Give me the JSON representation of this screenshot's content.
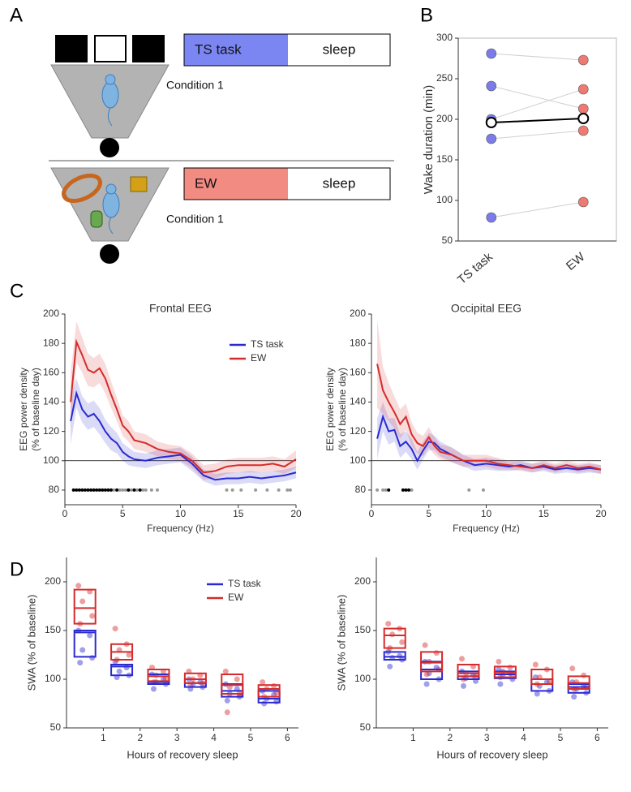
{
  "panel_labels": [
    "A",
    "B",
    "C",
    "D"
  ],
  "diagram": {
    "rows": [
      {
        "task": "TS task",
        "sleep": "sleep",
        "condition": "Condition 1"
      },
      {
        "task": "EW",
        "sleep": "sleep",
        "condition": "Condition 1"
      }
    ]
  },
  "chart_data": [
    {
      "type": "paired",
      "ylabel": "Wake duration (min)",
      "categories": [
        "TS task",
        "EW"
      ],
      "colors": [
        "#7b7bea",
        "#ee7a72"
      ],
      "ylim": [
        50,
        300
      ],
      "yticks": [
        50,
        100,
        150,
        200,
        250,
        300
      ],
      "subjects": [
        [
          281,
          273
        ],
        [
          241,
          213
        ],
        [
          200,
          237
        ],
        [
          176,
          186
        ],
        [
          79,
          98
        ]
      ],
      "mean": [
        196,
        201
      ]
    },
    {
      "type": "line",
      "title": "Frontal EEG",
      "xlabel": "Frequency (Hz)",
      "ylabel": [
        "EEG power density",
        "(% of baseline day)"
      ],
      "x": [
        0.5,
        1,
        1.5,
        2,
        2.5,
        3,
        3.5,
        4,
        4.5,
        5,
        5.5,
        6,
        7,
        8,
        9,
        10,
        11,
        12,
        13,
        14,
        15,
        16,
        17,
        18,
        19,
        20
      ],
      "xlim": [
        0,
        20
      ],
      "xticks": [
        0,
        5,
        10,
        15,
        20
      ],
      "ylim": [
        70,
        200
      ],
      "yticks": [
        80,
        100,
        120,
        140,
        160,
        180,
        200
      ],
      "reference_line": 100,
      "legend": "upper right",
      "series": [
        {
          "name": "TS task",
          "color": "#2a2ad0",
          "values": [
            127,
            146,
            135,
            130,
            132,
            127,
            120,
            115,
            112,
            106,
            103,
            101,
            100,
            102,
            103,
            104,
            98,
            90,
            87,
            88,
            88,
            89,
            88,
            89,
            90,
            92
          ],
          "errors": [
            16,
            10,
            9,
            9,
            9,
            9,
            8,
            8,
            7,
            6,
            6,
            5,
            5,
            5,
            5,
            5,
            5,
            4,
            4,
            4,
            4,
            4,
            4,
            4,
            4,
            4
          ]
        },
        {
          "name": "EW",
          "color": "#d62b2b",
          "values": [
            140,
            181,
            172,
            162,
            160,
            163,
            156,
            145,
            135,
            124,
            120,
            114,
            112,
            108,
            106,
            105,
            100,
            92,
            93,
            96,
            97,
            97,
            97,
            98,
            96,
            101
          ],
          "errors": [
            20,
            14,
            12,
            11,
            10,
            10,
            10,
            9,
            8,
            7,
            7,
            6,
            6,
            5,
            5,
            5,
            5,
            5,
            5,
            5,
            5,
            5,
            5,
            5,
            5,
            6
          ]
        }
      ],
      "significance": {
        "y": 80,
        "black": [
          0.75,
          1,
          1.25,
          1.5,
          1.75,
          2,
          2.25,
          2.5,
          2.75,
          3,
          3.25,
          3.5,
          3.75,
          4,
          4.5,
          5.5,
          6,
          6.5
        ],
        "grey": [
          4.25,
          4.75,
          5,
          5.25,
          5.75,
          6.25,
          6.75,
          7,
          7.5,
          8,
          14,
          14.5,
          15.25,
          16.5,
          17.5,
          18.5,
          19.25,
          19.5
        ]
      }
    },
    {
      "type": "line",
      "title": "Occipital EEG",
      "xlabel": "Frequency (Hz)",
      "ylabel": [
        "EEG power density",
        "(% of baseline day)"
      ],
      "x": [
        0.5,
        1,
        1.5,
        2,
        2.5,
        3,
        3.5,
        4,
        4.5,
        5,
        5.5,
        6,
        7,
        8,
        9,
        10,
        11,
        12,
        13,
        14,
        15,
        16,
        17,
        18,
        19,
        20
      ],
      "xlim": [
        0,
        20
      ],
      "xticks": [
        0,
        5,
        10,
        15,
        20
      ],
      "ylim": [
        70,
        200
      ],
      "yticks": [
        80,
        100,
        120,
        140,
        160,
        180,
        200
      ],
      "reference_line": 100,
      "series": [
        {
          "color": "#2a2ad0",
          "values": [
            115,
            130,
            120,
            121,
            110,
            113,
            108,
            100,
            107,
            113,
            112,
            108,
            104,
            100,
            97,
            98,
            97,
            96,
            97,
            95,
            96,
            94,
            95,
            94,
            95,
            94
          ],
          "errors": [
            14,
            10,
            9,
            8,
            8,
            7,
            7,
            6,
            6,
            6,
            5,
            5,
            5,
            4,
            4,
            4,
            4,
            3,
            3,
            3,
            3,
            3,
            3,
            3,
            3,
            3
          ]
        },
        {
          "color": "#d62b2b",
          "values": [
            166,
            148,
            140,
            133,
            125,
            130,
            118,
            112,
            110,
            116,
            110,
            106,
            104,
            100,
            100,
            100,
            98,
            97,
            96,
            95,
            97,
            95,
            97,
            95,
            96,
            94
          ],
          "errors": [
            30,
            16,
            13,
            11,
            10,
            9,
            8,
            7,
            7,
            7,
            6,
            5,
            5,
            4,
            4,
            4,
            4,
            3,
            3,
            3,
            3,
            3,
            3,
            3,
            3,
            3
          ]
        }
      ],
      "significance": {
        "y": 80,
        "black": [
          1.5,
          2.75,
          3,
          3.25
        ],
        "grey": [
          0.5,
          1,
          1.25,
          3.5,
          8.5,
          9.75
        ]
      }
    },
    {
      "type": "box",
      "xlabel": "Hours of recovery sleep",
      "ylabel": "SWA (% of baseline)",
      "positions": [
        0.5,
        1.5,
        2.5,
        3.5,
        4.5,
        5.5
      ],
      "xlim": [
        0,
        6.3
      ],
      "xticks": [
        1,
        2,
        3,
        4,
        5,
        6
      ],
      "ylim": [
        50,
        225
      ],
      "yticks": [
        50,
        100,
        150,
        200
      ],
      "legend": "upper center",
      "series": [
        {
          "name": "TS task",
          "color": "#2a2ad0",
          "q1": [
            123,
            104,
            95,
            92,
            82,
            76
          ],
          "median": [
            148,
            113,
            97,
            96,
            88,
            80
          ],
          "q3": [
            150,
            115,
            105,
            100,
            95,
            88
          ],
          "points": [
            [
              150,
              145,
              130,
              122,
              117
            ],
            [
              118,
              112,
              108,
              104,
              102
            ],
            [
              105,
              100,
              97,
              95,
              90
            ],
            [
              100,
              97,
              95,
              92,
              90
            ],
            [
              95,
              90,
              85,
              82,
              78
            ],
            [
              88,
              84,
              80,
              77,
              75
            ]
          ]
        },
        {
          "name": "EW",
          "color": "#d62b2b",
          "q1": [
            157,
            120,
            98,
            96,
            85,
            82
          ],
          "median": [
            173,
            128,
            103,
            100,
            94,
            90
          ],
          "q3": [
            192,
            136,
            110,
            106,
            105,
            94
          ],
          "points": [
            [
              196,
              190,
              180,
              165,
              157
            ],
            [
              152,
              136,
              130,
              125,
              120
            ],
            [
              112,
              108,
              104,
              100,
              97
            ],
            [
              108,
              104,
              100,
              96,
              94
            ],
            [
              108,
              100,
              92,
              85,
              66
            ],
            [
              97,
              93,
              90,
              86,
              82
            ]
          ]
        }
      ]
    },
    {
      "type": "box",
      "xlabel": "Hours of recovery sleep",
      "ylabel": "SWA (% of baseline)",
      "positions": [
        0.5,
        1.5,
        2.5,
        3.5,
        4.5,
        5.5
      ],
      "xlim": [
        0,
        6.3
      ],
      "xticks": [
        1,
        2,
        3,
        4,
        5,
        6
      ],
      "ylim": [
        50,
        225
      ],
      "yticks": [
        50,
        100,
        150,
        200
      ],
      "series": [
        {
          "color": "#2a2ad0",
          "q1": [
            120,
            100,
            100,
            101,
            88,
            86
          ],
          "median": [
            123,
            110,
            103,
            105,
            95,
            92
          ],
          "q3": [
            128,
            118,
            108,
            108,
            100,
            95
          ],
          "points": [
            [
              128,
              124,
              122,
              120,
              113
            ],
            [
              118,
              112,
              106,
              100,
              95
            ],
            [
              108,
              104,
              101,
              98,
              93
            ],
            [
              110,
              106,
              103,
              100,
              95
            ],
            [
              102,
              97,
              93,
              88,
              85
            ],
            [
              97,
              93,
              90,
              86,
              82
            ]
          ]
        },
        {
          "color": "#d62b2b",
          "q1": [
            132,
            108,
            103,
            102,
            95,
            90
          ],
          "median": [
            145,
            117,
            106,
            107,
            100,
            96
          ],
          "q3": [
            152,
            128,
            115,
            113,
            110,
            103
          ],
          "points": [
            [
              157,
              152,
              146,
              138,
              132
            ],
            [
              135,
              127,
              118,
              110,
              105
            ],
            [
              121,
              113,
              106,
              103,
              100
            ],
            [
              118,
              112,
              108,
              104,
              102
            ],
            [
              115,
              110,
              102,
              97,
              95
            ],
            [
              111,
              104,
              97,
              93,
              90
            ]
          ]
        }
      ]
    }
  ]
}
